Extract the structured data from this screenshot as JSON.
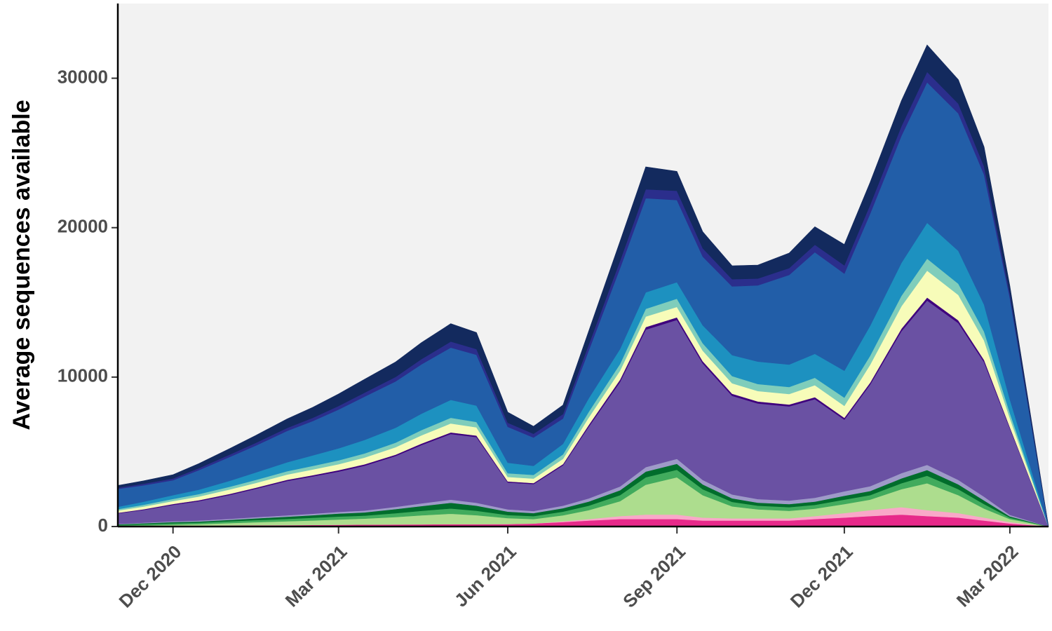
{
  "chart_data": {
    "type": "area",
    "stacked": true,
    "title": "",
    "xlabel": "",
    "ylabel": "Average sequences available",
    "ylim": [
      0,
      35000
    ],
    "xlim": [
      "2020-11-01",
      "2022-03-22"
    ],
    "y_ticks": [
      0,
      10000,
      20000,
      30000
    ],
    "y_tick_labels": [
      "0",
      "10000",
      "20000",
      "30000"
    ],
    "x_ticks": [
      "2020-12-01",
      "2021-03-01",
      "2021-06-01",
      "2021-09-01",
      "2021-12-01",
      "2022-03-01"
    ],
    "x_tick_labels": [
      "Dec 2020",
      "Mar 2021",
      "Jun 2021",
      "Sep 2021",
      "Dec 2021",
      "Mar 2022"
    ],
    "grid": false,
    "legend": "none",
    "background_color": "#f2f2f2",
    "x": [
      "2020-11-01",
      "2020-11-15",
      "2020-12-01",
      "2020-12-15",
      "2021-01-01",
      "2021-01-15",
      "2021-02-01",
      "2021-02-15",
      "2021-03-01",
      "2021-03-15",
      "2021-04-01",
      "2021-04-15",
      "2021-05-01",
      "2021-05-15",
      "2021-06-01",
      "2021-06-15",
      "2021-07-01",
      "2021-07-15",
      "2021-08-01",
      "2021-08-15",
      "2021-09-01",
      "2021-09-15",
      "2021-10-01",
      "2021-10-15",
      "2021-11-01",
      "2021-11-15",
      "2021-12-01",
      "2021-12-15",
      "2022-01-01",
      "2022-01-15",
      "2022-02-01",
      "2022-02-15",
      "2022-03-01",
      "2022-03-22"
    ],
    "series": [
      {
        "color": "#e7298a",
        "values": [
          20,
          30,
          40,
          60,
          80,
          90,
          100,
          110,
          120,
          130,
          140,
          150,
          160,
          160,
          170,
          200,
          300,
          400,
          500,
          500,
          500,
          400,
          400,
          400,
          400,
          500,
          600,
          700,
          800,
          700,
          600,
          400,
          200,
          0
        ]
      },
      {
        "color": "#f9a8c8",
        "values": [
          0,
          0,
          0,
          0,
          0,
          0,
          0,
          0,
          0,
          0,
          0,
          0,
          0,
          0,
          0,
          0,
          50,
          100,
          200,
          300,
          300,
          200,
          150,
          150,
          150,
          200,
          300,
          400,
          500,
          400,
          300,
          200,
          100,
          0
        ]
      },
      {
        "color": "#addd8e",
        "values": [
          30,
          50,
          80,
          100,
          150,
          200,
          250,
          300,
          350,
          400,
          500,
          600,
          700,
          600,
          400,
          300,
          400,
          600,
          1000,
          2000,
          2500,
          1500,
          800,
          600,
          500,
          500,
          600,
          700,
          1200,
          1800,
          1200,
          600,
          200,
          0
        ]
      },
      {
        "color": "#41ab5d",
        "values": [
          60,
          80,
          100,
          100,
          120,
          140,
          160,
          180,
          200,
          200,
          250,
          300,
          350,
          300,
          200,
          200,
          250,
          300,
          400,
          500,
          500,
          400,
          300,
          250,
          250,
          250,
          300,
          300,
          400,
          500,
          400,
          300,
          100,
          0
        ]
      },
      {
        "color": "#006d2c",
        "values": [
          40,
          60,
          80,
          80,
          100,
          120,
          150,
          170,
          200,
          220,
          280,
          320,
          380,
          340,
          230,
          200,
          230,
          270,
          330,
          380,
          400,
          320,
          240,
          200,
          200,
          220,
          260,
          280,
          320,
          380,
          320,
          250,
          80,
          0
        ]
      },
      {
        "color": "#9e9ac8",
        "values": [
          30,
          40,
          50,
          60,
          70,
          80,
          90,
          100,
          110,
          120,
          150,
          180,
          210,
          190,
          150,
          140,
          170,
          210,
          250,
          300,
          330,
          300,
          260,
          240,
          240,
          260,
          300,
          320,
          350,
          350,
          300,
          250,
          100,
          0
        ]
      },
      {
        "color": "#6a51a3",
        "values": [
          700,
          850,
          1100,
          1300,
          1600,
          1900,
          2300,
          2500,
          2700,
          3000,
          3400,
          3900,
          4400,
          4400,
          1800,
          1800,
          2700,
          4800,
          7000,
          9200,
          9300,
          7800,
          6600,
          6400,
          6300,
          6600,
          4800,
          6800,
          9500,
          11000,
          10500,
          9000,
          5800,
          0
        ]
      },
      {
        "color": "#3f007d",
        "values": [
          40,
          50,
          60,
          60,
          70,
          70,
          80,
          80,
          90,
          90,
          90,
          100,
          100,
          100,
          70,
          70,
          80,
          120,
          150,
          170,
          170,
          150,
          140,
          130,
          130,
          130,
          120,
          130,
          170,
          200,
          180,
          150,
          80,
          0
        ]
      },
      {
        "color": "#f7fcb9",
        "values": [
          150,
          180,
          200,
          250,
          300,
          320,
          350,
          380,
          400,
          450,
          500,
          550,
          600,
          550,
          300,
          300,
          350,
          500,
          600,
          700,
          700,
          700,
          700,
          700,
          700,
          800,
          800,
          1200,
          1500,
          1800,
          1700,
          1300,
          600,
          0
        ]
      },
      {
        "color": "#7fcdbb",
        "values": [
          100,
          120,
          140,
          160,
          180,
          200,
          220,
          240,
          260,
          280,
          300,
          350,
          380,
          360,
          250,
          250,
          300,
          380,
          450,
          520,
          550,
          500,
          480,
          470,
          470,
          500,
          550,
          600,
          700,
          800,
          750,
          600,
          350,
          0
        ]
      },
      {
        "color": "#1d91c0",
        "values": [
          150,
          200,
          250,
          300,
          400,
          500,
          600,
          700,
          800,
          900,
          1000,
          1100,
          1200,
          1100,
          700,
          600,
          700,
          900,
          1000,
          1100,
          1100,
          1200,
          1400,
          1500,
          1500,
          1600,
          1800,
          2000,
          2200,
          2400,
          2200,
          1800,
          900,
          0
        ]
      },
      {
        "color": "#225ea8",
        "values": [
          1200,
          1100,
          1000,
          1300,
          1600,
          1800,
          2100,
          2300,
          2600,
          2900,
          3100,
          3300,
          3500,
          3400,
          2400,
          1900,
          1700,
          3200,
          5400,
          6300,
          5500,
          4600,
          4600,
          5100,
          6000,
          6800,
          6500,
          7500,
          8500,
          9400,
          9200,
          8700,
          6800,
          0
        ]
      },
      {
        "color": "#2b2e8c",
        "values": [
          80,
          100,
          120,
          140,
          160,
          180,
          200,
          220,
          240,
          260,
          300,
          350,
          400,
          380,
          280,
          250,
          300,
          400,
          500,
          600,
          620,
          560,
          480,
          460,
          460,
          500,
          550,
          600,
          650,
          700,
          650,
          550,
          300,
          0
        ]
      },
      {
        "color": "#132a5e",
        "values": [
          150,
          200,
          250,
          300,
          400,
          500,
          600,
          700,
          800,
          900,
          1000,
          1100,
          1200,
          1100,
          700,
          500,
          600,
          900,
          1300,
          1500,
          1300,
          1100,
          900,
          900,
          1000,
          1200,
          1400,
          1500,
          1700,
          1800,
          1600,
          1300,
          500,
          0
        ]
      }
    ]
  }
}
